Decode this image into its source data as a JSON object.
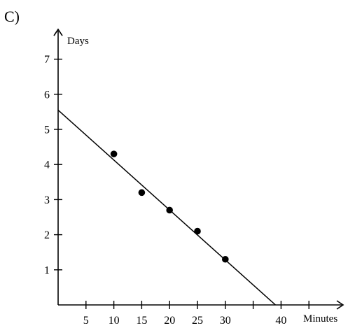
{
  "chart_data": {
    "type": "scatter",
    "panel_label": "C)",
    "xlabel": "Minutes",
    "ylabel": "Days",
    "xlim": [
      0,
      50
    ],
    "ylim": [
      0,
      7.5
    ],
    "x_ticks": [
      5,
      10,
      15,
      20,
      25,
      30,
      35,
      40,
      45
    ],
    "x_tick_labels": [
      "5",
      "10",
      "15",
      "20",
      "25",
      "30",
      "",
      "40",
      ""
    ],
    "y_ticks": [
      1,
      2,
      3,
      4,
      5,
      6,
      7
    ],
    "y_tick_labels": [
      "1",
      "2",
      "3",
      "4",
      "5",
      "6",
      "7"
    ],
    "points": [
      {
        "x": 10,
        "y": 4.3
      },
      {
        "x": 15,
        "y": 3.2
      },
      {
        "x": 20,
        "y": 2.7
      },
      {
        "x": 25,
        "y": 2.1
      },
      {
        "x": 30,
        "y": 1.3
      }
    ],
    "fit_line": {
      "x": [
        0,
        39
      ],
      "y": [
        5.55,
        0
      ]
    },
    "grid": false,
    "colors": {
      "ink": "#000000",
      "background": "#ffffff"
    }
  }
}
